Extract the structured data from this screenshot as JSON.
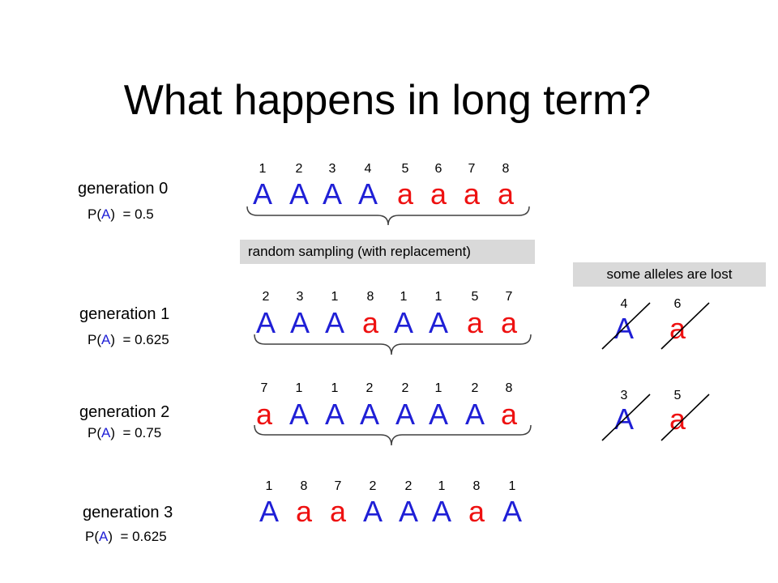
{
  "title": "What happens in long term?",
  "colors": {
    "capital": "#1f1fd6",
    "lower": "#ee1111",
    "box_bg": "#d9d9d9"
  },
  "generations": [
    {
      "label": "generation 0",
      "p_prefix": "P(",
      "p_allele": "A",
      "p_suffix": ")  = 0.5",
      "indices": [
        "1",
        "2",
        "3",
        "4",
        "5",
        "6",
        "7",
        "8"
      ],
      "alleles": [
        "A",
        "A",
        "A",
        "A",
        "a",
        "a",
        "a",
        "a"
      ]
    },
    {
      "label": "generation 1",
      "p_prefix": "P(",
      "p_allele": "A",
      "p_suffix": ")  = 0.625",
      "indices": [
        "2",
        "3",
        "1",
        "8",
        "1",
        "1",
        "5",
        "7"
      ],
      "alleles": [
        "A",
        "A",
        "A",
        "a",
        "A",
        "A",
        "a",
        "a"
      ]
    },
    {
      "label": "generation 2",
      "p_prefix": "P(",
      "p_allele": "A",
      "p_suffix": ")  = 0.75",
      "indices": [
        "7",
        "1",
        "1",
        "2",
        "2",
        "1",
        "2",
        "8"
      ],
      "alleles": [
        "a",
        "A",
        "A",
        "A",
        "A",
        "A",
        "A",
        "a"
      ]
    },
    {
      "label": "generation 3",
      "p_prefix": "P(",
      "p_allele": "A",
      "p_suffix": ")  = 0.625",
      "indices": [
        "1",
        "8",
        "7",
        "2",
        "2",
        "1",
        "8",
        "1"
      ],
      "alleles": [
        "A",
        "a",
        "a",
        "A",
        "A",
        "A",
        "a",
        "A"
      ]
    }
  ],
  "sampling_note": "random sampling (with replacement)",
  "lost_note": "some alleles are lost",
  "lost_groups": [
    {
      "indices": [
        "4",
        "6"
      ],
      "alleles": [
        "A",
        "a"
      ]
    },
    {
      "indices": [
        "3",
        "5"
      ],
      "alleles": [
        "A",
        "a"
      ]
    }
  ]
}
